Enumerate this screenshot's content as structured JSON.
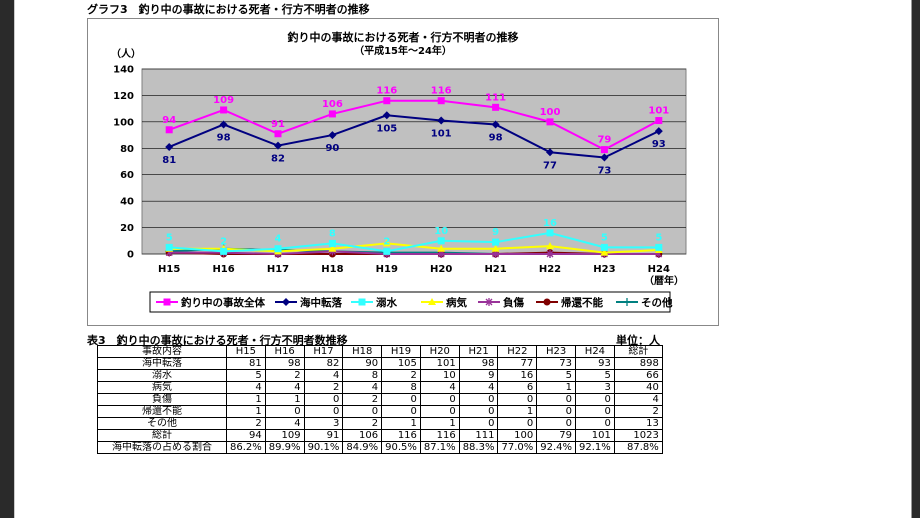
{
  "figure_title": "グラフ3　釣り中の事故における死者・行方不明者の推移",
  "colors": {
    "total": "#ff00ff",
    "fall": "#000080",
    "drown": "#33ffff",
    "illness": "#ffff00",
    "injury": "#993399",
    "no_return": "#800000",
    "other": "#008080",
    "plot_bg": "#c0c0c0"
  },
  "chart_data": {
    "type": "line",
    "title": "釣り中の事故における死者・行方不明者の推移",
    "subtitle": "（平成15年～24年）",
    "ylabel": "（人）",
    "xlabel": "（暦年）",
    "ylim": [
      0,
      140
    ],
    "yticks": [
      0,
      20,
      40,
      60,
      80,
      100,
      120,
      140
    ],
    "categories": [
      "H15",
      "H16",
      "H17",
      "H18",
      "H19",
      "H20",
      "H21",
      "H22",
      "H23",
      "H24"
    ],
    "grid": true,
    "legend_position": "bottom",
    "series": [
      {
        "name": "釣り中の事故全体",
        "key": "total",
        "marker": "square",
        "values": [
          94,
          109,
          91,
          106,
          116,
          116,
          111,
          100,
          79,
          101
        ],
        "labels": "above"
      },
      {
        "name": "海中転落",
        "key": "fall",
        "marker": "diamond",
        "values": [
          81,
          98,
          82,
          90,
          105,
          101,
          98,
          77,
          73,
          93
        ],
        "labels": "below"
      },
      {
        "name": "溺水",
        "key": "drown",
        "marker": "square",
        "values": [
          5,
          2,
          4,
          8,
          2,
          10,
          9,
          16,
          5,
          5
        ],
        "labels": "above"
      },
      {
        "name": "病気",
        "key": "illness",
        "marker": "triangle",
        "values": [
          4,
          4,
          2,
          4,
          8,
          4,
          4,
          6,
          1,
          3
        ],
        "labels": "none"
      },
      {
        "name": "負傷",
        "key": "injury",
        "marker": "x",
        "values": [
          1,
          1,
          0,
          2,
          0,
          0,
          0,
          0,
          0,
          0
        ],
        "labels": "none"
      },
      {
        "name": "帰還不能",
        "key": "no_return",
        "marker": "circle",
        "values": [
          1,
          0,
          0,
          0,
          0,
          0,
          0,
          1,
          0,
          0
        ],
        "labels": "none"
      },
      {
        "name": "その他",
        "key": "other",
        "marker": "plus",
        "values": [
          2,
          4,
          3,
          2,
          1,
          1,
          0,
          0,
          0,
          0
        ],
        "labels": "none"
      }
    ]
  },
  "table": {
    "title": "表3　釣り中の事故における死者・行方不明者数推移",
    "unit": "単位：人",
    "headers": [
      "事故内容",
      "H15",
      "H16",
      "H17",
      "H18",
      "H19",
      "H20",
      "H21",
      "H22",
      "H23",
      "H24",
      "総計"
    ],
    "rows": [
      [
        "海中転落",
        "81",
        "98",
        "82",
        "90",
        "105",
        "101",
        "98",
        "77",
        "73",
        "93",
        "898"
      ],
      [
        "溺水",
        "5",
        "2",
        "4",
        "8",
        "2",
        "10",
        "9",
        "16",
        "5",
        "5",
        "66"
      ],
      [
        "病気",
        "4",
        "4",
        "2",
        "4",
        "8",
        "4",
        "4",
        "6",
        "1",
        "3",
        "40"
      ],
      [
        "負傷",
        "1",
        "1",
        "0",
        "2",
        "0",
        "0",
        "0",
        "0",
        "0",
        "0",
        "4"
      ],
      [
        "帰還不能",
        "1",
        "0",
        "0",
        "0",
        "0",
        "0",
        "0",
        "1",
        "0",
        "0",
        "2"
      ],
      [
        "その他",
        "2",
        "4",
        "3",
        "2",
        "1",
        "1",
        "0",
        "0",
        "0",
        "0",
        "13"
      ],
      [
        "総計",
        "94",
        "109",
        "91",
        "106",
        "116",
        "116",
        "111",
        "100",
        "79",
        "101",
        "1023"
      ],
      [
        "海中転落の占める割合",
        "86.2%",
        "89.9%",
        "90.1%",
        "84.9%",
        "90.5%",
        "87.1%",
        "88.3%",
        "77.0%",
        "92.4%",
        "92.1%",
        "87.8%"
      ]
    ]
  }
}
